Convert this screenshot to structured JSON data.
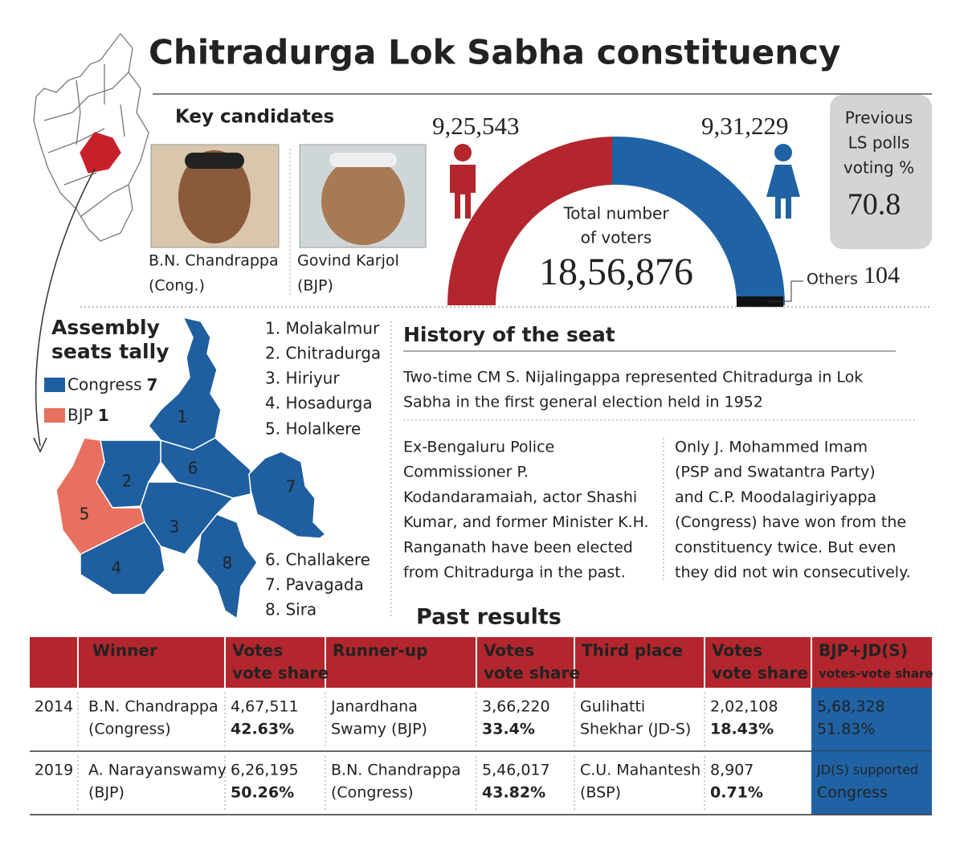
{
  "header": {
    "title": "Chitradurga Lok Sabha constituency"
  },
  "candidates": {
    "title": "Key candidates",
    "items": [
      {
        "name": "B.N. Chandrappa",
        "party": "(Cong.)"
      },
      {
        "name": "Govind Karjol",
        "party": "(BJP)"
      }
    ]
  },
  "voters": {
    "male": "9,25,543",
    "female": "9,31,229",
    "total_caption": [
      "Total number",
      "of voters"
    ],
    "total": "18,56,876",
    "others_label": "Others",
    "others": "104"
  },
  "previous": {
    "caption": [
      "Previous",
      "LS polls",
      "voting %"
    ],
    "value": "70.8"
  },
  "assembly": {
    "title": [
      "Assembly",
      "seats tally"
    ],
    "legend": [
      {
        "party": "Congress",
        "count": "7"
      },
      {
        "party": "BJP",
        "count": "1"
      }
    ],
    "constituencies": [
      "1. Molakalmur",
      "2. Chitradurga",
      "3. Hiriyur",
      "4. Hosadurga",
      "5. Holalkere",
      "6. Challakere",
      "7. Pavagada",
      "8. Sira"
    ],
    "map_numbers": [
      "1",
      "2",
      "3",
      "4",
      "5",
      "6",
      "7",
      "8"
    ]
  },
  "history": {
    "title": "History of the seat",
    "intro": [
      "Two-time CM S. Nijalingappa represented Chitradurga in Lok",
      "Sabha in the first general election held in 1952"
    ],
    "left": [
      "Ex-Bengaluru Police",
      "Commissioner P.",
      "Kodandaramaiah, actor Shashi",
      "Kumar, and former Minister K.H.",
      "Ranganath have been elected",
      "from Chitradurga in the past."
    ],
    "right": [
      "Only J. Mohammed Imam",
      "(PSP  and Swatantra Party)",
      "and C.P. Moodalagiriyappa",
      "(Congress) have won from the",
      "constituency twice. But even",
      "they did not win consecutively."
    ]
  },
  "past_results": {
    "title": "Past results",
    "columns": [
      [
        "Winner"
      ],
      [
        "Votes",
        "vote share"
      ],
      [
        "Runner-up"
      ],
      [
        "Votes",
        "vote share"
      ],
      [
        "Third place"
      ],
      [
        "Votes",
        "vote share"
      ],
      [
        "BJP+JD(S)",
        "votes-vote share"
      ]
    ],
    "rows": [
      {
        "year": "2014",
        "cells": [
          [
            "B.N. Chandrappa",
            "(Congress)"
          ],
          [
            "4,67,511",
            "42.63%"
          ],
          [
            "Janardhana",
            "Swamy (BJP)"
          ],
          [
            "3,66,220",
            "33.4%"
          ],
          [
            "Gulihatti",
            "Shekhar (JD-S)"
          ],
          [
            "2,02,108",
            "18.43%"
          ],
          [
            "5,68,328",
            "51.83%"
          ]
        ]
      },
      {
        "year": "2019",
        "cells": [
          [
            "A. Narayanswamy",
            "(BJP)"
          ],
          [
            "6,26,195",
            "50.26%"
          ],
          [
            "B.N. Chandrappa",
            "(Congress)"
          ],
          [
            "5,46,017",
            "43.82%"
          ],
          [
            "C.U. Mahantesh",
            "(BSP)"
          ],
          [
            "8,907",
            "0.71%"
          ],
          [
            "JD(S) supported",
            "Congress"
          ]
        ]
      }
    ]
  }
}
